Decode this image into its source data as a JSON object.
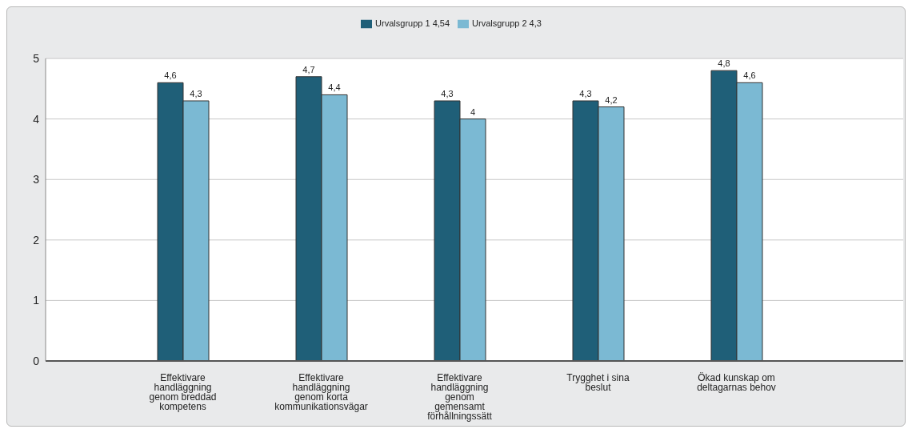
{
  "chart_data": {
    "type": "bar",
    "categories": [
      "Effektivare handläggning genom breddad kompetens",
      "Effektivare handläggning genom korta kommunikationsvägar",
      "Effektivare handläggning genom gemensamt förhållningssätt",
      "Trygghet i sina beslut",
      "Ökad kunskap om deltagarnas behov"
    ],
    "series": [
      {
        "name": "Urvalsgrupp 1   4,54",
        "color": "#1f5f78",
        "values": [
          4.6,
          4.7,
          4.3,
          4.3,
          4.8
        ],
        "value_labels": [
          "4,6",
          "4,7",
          "4,3",
          "4,3",
          "4,8"
        ]
      },
      {
        "name": "Urvalsgrupp 2   4,3",
        "color": "#7bb9d3",
        "values": [
          4.3,
          4.4,
          4.0,
          4.2,
          4.6
        ],
        "value_labels": [
          "4,3",
          "4,4",
          "4",
          "4,2",
          "4,6"
        ]
      }
    ],
    "ylim": [
      0,
      5
    ],
    "yticks": [
      0,
      1,
      2,
      3,
      4,
      5
    ],
    "grid": "y",
    "legend": "top"
  }
}
